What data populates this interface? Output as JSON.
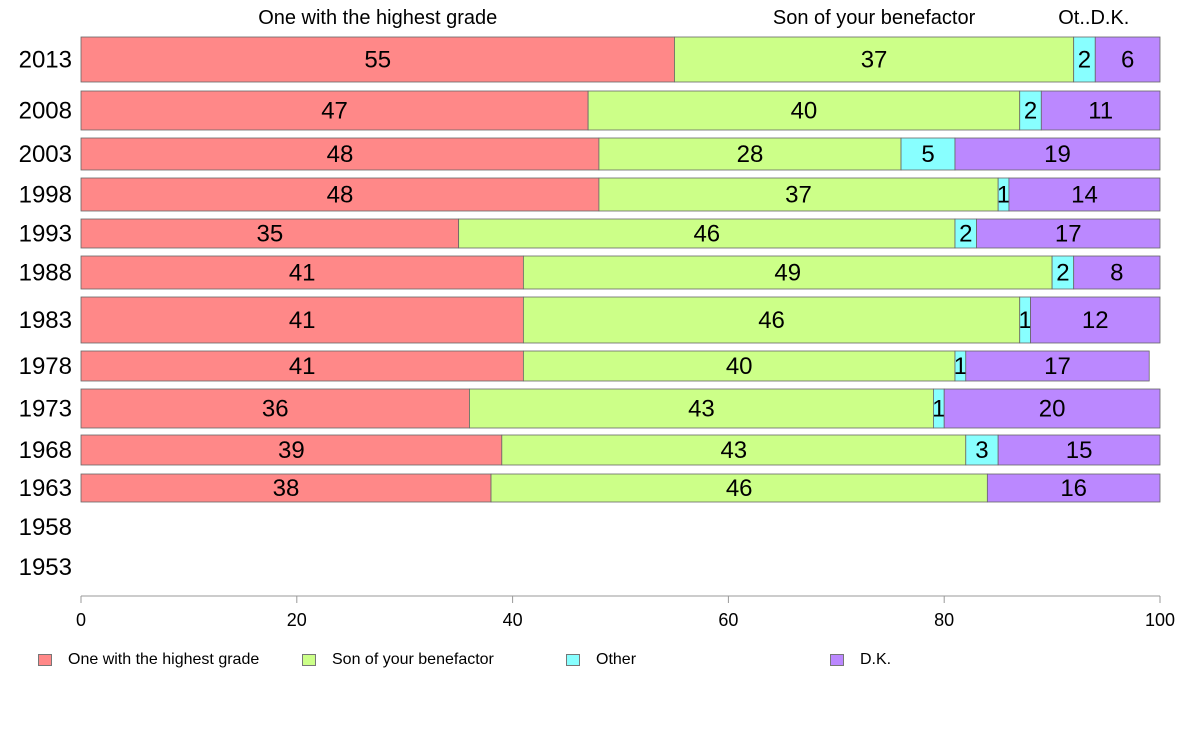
{
  "chart_data": {
    "type": "bar",
    "orientation": "horizontal",
    "stacked": true,
    "categories": [
      "2013",
      "2008",
      "2003",
      "1998",
      "1993",
      "1988",
      "1983",
      "1978",
      "1973",
      "1968",
      "1963",
      "1958",
      "1953"
    ],
    "series": [
      {
        "name": "One with the highest grade",
        "color": "#ff8888",
        "values": [
          55,
          47,
          48,
          48,
          35,
          41,
          41,
          41,
          36,
          39,
          38,
          null,
          null
        ]
      },
      {
        "name": "Son of your benefactor",
        "color": "#ccff88",
        "values": [
          37,
          40,
          28,
          37,
          46,
          49,
          46,
          40,
          43,
          43,
          46,
          null,
          null
        ]
      },
      {
        "name": "Other",
        "color": "#88ffff",
        "values": [
          2,
          2,
          5,
          1,
          2,
          2,
          1,
          1,
          1,
          3,
          null,
          null,
          null
        ]
      },
      {
        "name": "D.K.",
        "color": "#bb88ff",
        "values": [
          6,
          11,
          19,
          14,
          17,
          8,
          12,
          17,
          20,
          15,
          16,
          null,
          null
        ]
      }
    ],
    "top_labels": [
      "One with the highest grade",
      "Son of your benefactor",
      "Ot..",
      "D.K."
    ],
    "x_ticks": [
      0,
      20,
      40,
      60,
      80,
      100
    ],
    "xlim": [
      0,
      100
    ],
    "legend_position": "bottom"
  }
}
